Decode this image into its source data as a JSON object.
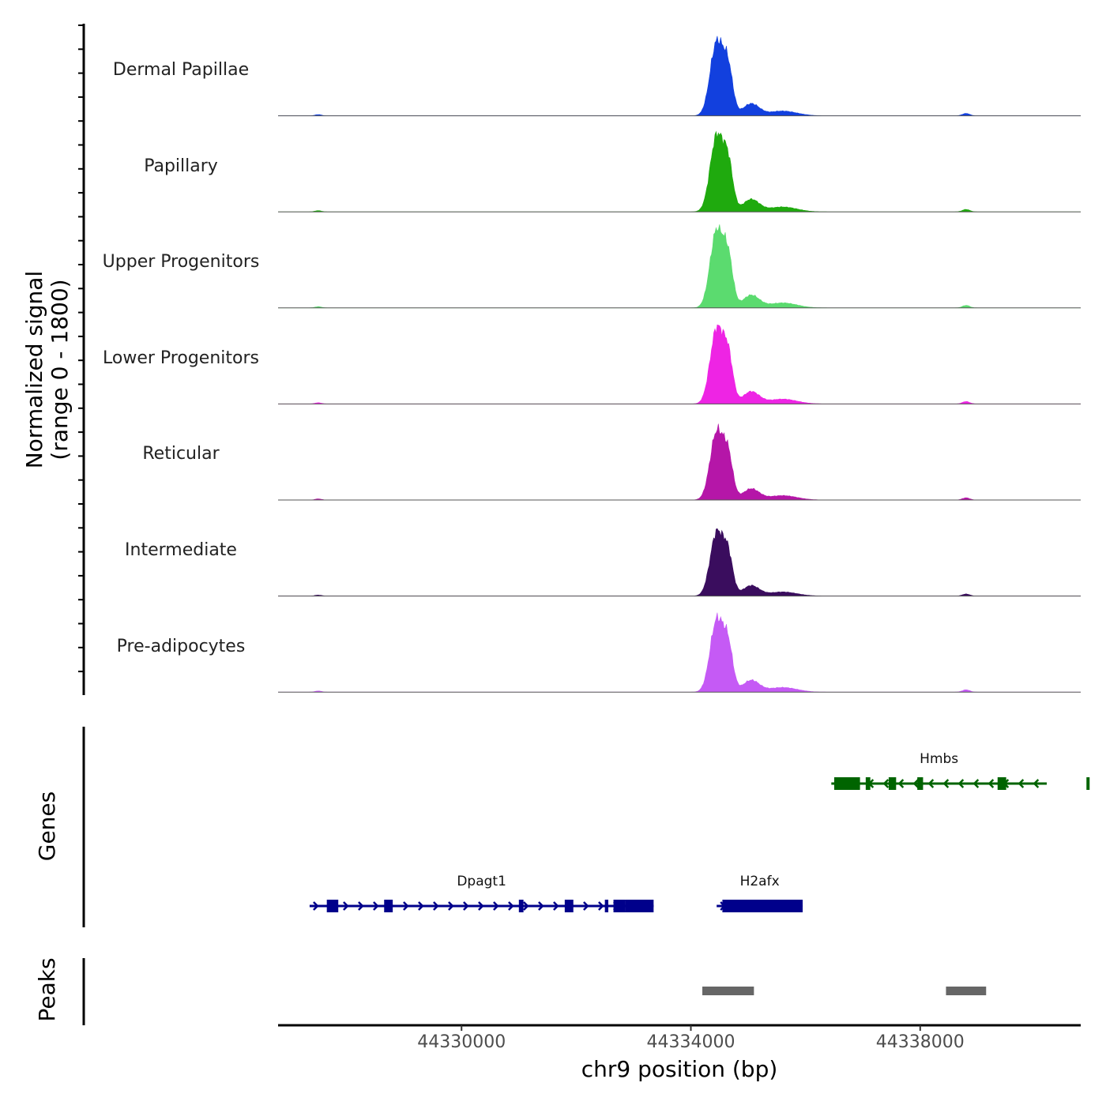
{
  "chart_data": {
    "type": "area",
    "ylabel": "Normalized signal\n(range 0 - 1800)",
    "ylabel_line1": "Normalized signal",
    "ylabel_line2": "(range 0 - 1800)",
    "xlabel": "chr9 position (bp)",
    "xlim": [
      44326800,
      44340800
    ],
    "xticks": [
      44330000,
      44334000,
      44338000
    ],
    "xtick_labels": [
      "44330000",
      "44334000",
      "44338000"
    ],
    "ylim": [
      0,
      1800
    ],
    "tracks": [
      {
        "name": "Dermal Papillae",
        "color": "#1240DE"
      },
      {
        "name": "Papillary",
        "color": "#1FAA0E"
      },
      {
        "name": "Upper Progenitors",
        "color": "#5BDB6F"
      },
      {
        "name": "Lower Progenitors",
        "color": "#EE24E4"
      },
      {
        "name": "Reticular",
        "color": "#B516A8"
      },
      {
        "name": "Intermediate",
        "color": "#3A0D5E"
      },
      {
        "name": "Pre-adipocytes",
        "color": "#C55AF5"
      }
    ],
    "peak_profile": [
      {
        "pos": 44334450,
        "height": 0.92,
        "width": 160
      },
      {
        "pos": 44334650,
        "height": 0.55,
        "width": 120
      },
      {
        "pos": 44335050,
        "height": 0.15,
        "width": 200
      },
      {
        "pos": 44335600,
        "height": 0.06,
        "width": 350
      },
      {
        "pos": 44338800,
        "height": 0.03,
        "width": 90
      },
      {
        "pos": 44327500,
        "height": 0.015,
        "width": 80
      }
    ],
    "track_scale": [
      0.95,
      0.98,
      1.0,
      0.97,
      0.88,
      0.82,
      0.93
    ],
    "genes_track_label": "Genes",
    "peaks_track_label": "Peaks",
    "genes": [
      {
        "name": "Dpagt1",
        "start": 44327350,
        "end": 44333350,
        "strand": "+",
        "color": "#00008B",
        "exons": [
          [
            44327650,
            44327850
          ],
          [
            44328650,
            44328800
          ],
          [
            44331000,
            44331080
          ],
          [
            44331800,
            44331950
          ],
          [
            44332500,
            44332560
          ],
          [
            44332650,
            44332850
          ],
          [
            44332850,
            44333350
          ]
        ]
      },
      {
        "name": "H2afx",
        "start": 44334450,
        "end": 44335950,
        "strand": "+",
        "color": "#00008B",
        "exons": [
          [
            44334550,
            44335950
          ]
        ]
      },
      {
        "name": "Hmbs",
        "start": 44336450,
        "end": 44341200,
        "strand": "-",
        "color": "#006400",
        "exons": [
          [
            44336500,
            44336950
          ],
          [
            44337050,
            44337130
          ],
          [
            44337450,
            44337580
          ],
          [
            44337950,
            44338050
          ],
          [
            44339350,
            44339500
          ],
          [
            44340900,
            44340980
          ]
        ]
      }
    ],
    "peaks": [
      [
        44334200,
        44335100
      ],
      [
        44338450,
        44339150
      ]
    ]
  }
}
